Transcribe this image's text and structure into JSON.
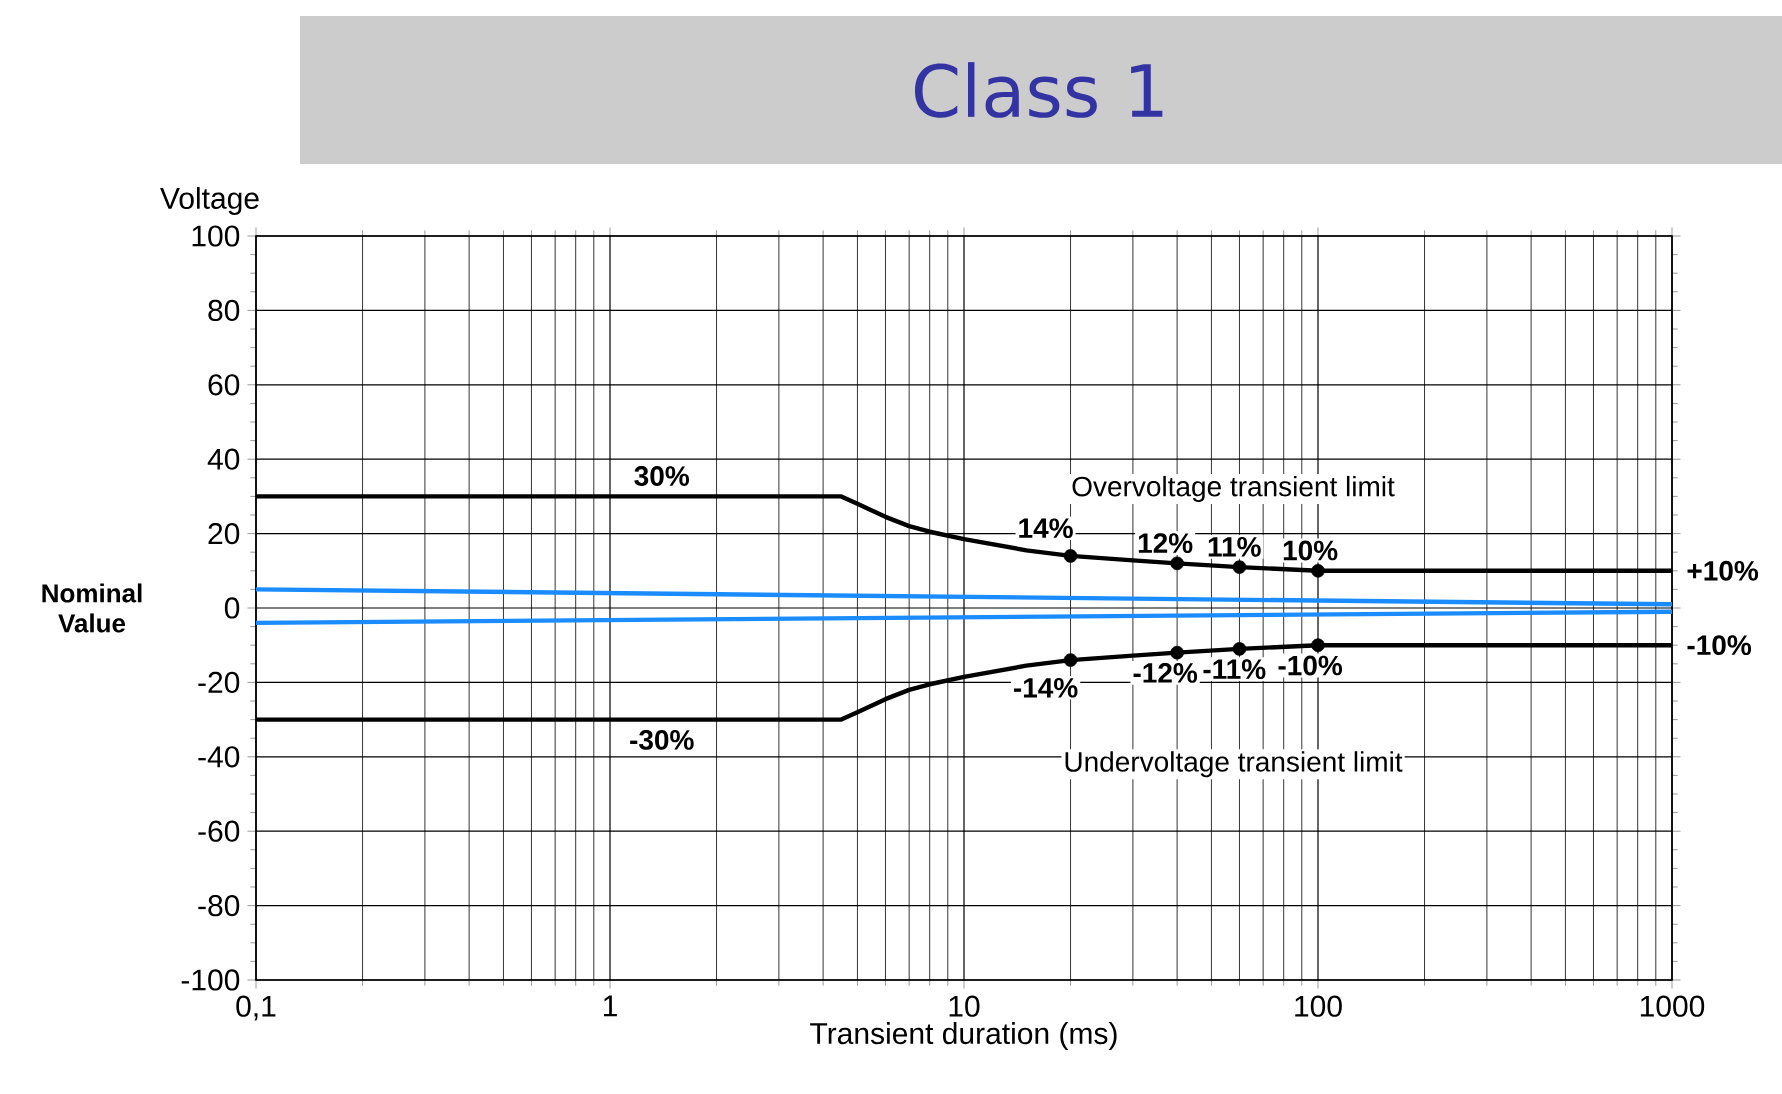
{
  "chart_data": {
    "type": "line",
    "title": "Class 1",
    "xlabel": "Transient duration (ms)",
    "ylabel": "Voltage",
    "log": "x",
    "grid": true,
    "line_style": "solid",
    "xlim": [
      0.1,
      1000
    ],
    "xticks": [
      {
        "value": 0.1,
        "label": "0,1"
      },
      1,
      10,
      100,
      1000
    ],
    "ylim": [
      -100,
      100
    ],
    "yticks": [
      -100,
      -80,
      -60,
      -40,
      -20,
      0,
      20,
      40,
      60,
      80,
      100
    ],
    "series": [
      {
        "color": "#000000",
        "marker": "none",
        "x": [
          0.1,
          4.5,
          5,
          6,
          7,
          8,
          10,
          15,
          20,
          30,
          40,
          60,
          100,
          1000
        ],
        "values": [
          30,
          30,
          28,
          24.5,
          22,
          20.5,
          18.5,
          15.5,
          14,
          12.8,
          12,
          11,
          10,
          10
        ]
      },
      {
        "color": "#000000",
        "marker": "none",
        "x": [
          0.1,
          4.5,
          5,
          6,
          7,
          8,
          10,
          15,
          20,
          30,
          40,
          60,
          100,
          1000
        ],
        "values": [
          -30,
          -30,
          -28,
          -24.5,
          -22,
          -20.5,
          -18.5,
          -15.5,
          -14,
          -12.8,
          -12,
          -11,
          -10,
          -10
        ]
      },
      {
        "type": "scatter",
        "color": "#000000",
        "marker": "circle",
        "x": [
          20,
          40,
          60,
          100,
          20,
          40,
          60,
          100
        ],
        "values": [
          14,
          12,
          11,
          10,
          -14,
          -12,
          -11,
          -10
        ]
      },
      {
        "color": "#1a8cff",
        "marker": "none",
        "x": [
          0.1,
          1000
        ],
        "values": [
          5,
          1
        ]
      },
      {
        "color": "#1a8cff",
        "marker": "none",
        "x": [
          0.1,
          1000
        ],
        "values": [
          -4,
          -1
        ]
      }
    ],
    "annotations": [
      "Nominal Value",
      "Overvoltage transient limit",
      "Undervoltage transient limit",
      {
        "text": "30%",
        "x": 1.4,
        "y": 30
      },
      {
        "text": "-30%",
        "x": 1.4,
        "y": -30
      },
      {
        "text": "14%",
        "x": 17,
        "y": 16
      },
      {
        "text": "12%",
        "x": 37,
        "y": 12
      },
      {
        "text": "11%",
        "x": 58,
        "y": 11
      },
      {
        "text": "10%",
        "x": 95,
        "y": 10
      },
      {
        "text": "-14%",
        "x": 17,
        "y": -16
      },
      {
        "text": "-12%",
        "x": 37,
        "y": -12
      },
      {
        "text": "-11%",
        "x": 58,
        "y": -11
      },
      {
        "text": "-10%",
        "x": 95,
        "y": -10
      },
      {
        "text": "+10%",
        "x": 1000,
        "y": 10
      },
      {
        "text": "-10%",
        "x": 1000,
        "y": -10
      }
    ]
  }
}
